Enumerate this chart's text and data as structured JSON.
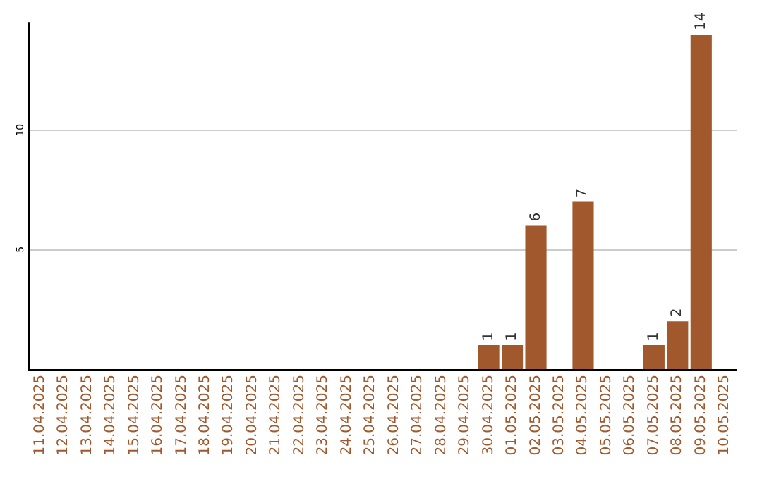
{
  "chart_data": {
    "type": "bar",
    "categories": [
      "11.04.2025",
      "12.04.2025",
      "13.04.2025",
      "14.04.2025",
      "15.04.2025",
      "16.04.2025",
      "17.04.2025",
      "18.04.2025",
      "19.04.2025",
      "20.04.2025",
      "21.04.2025",
      "22.04.2025",
      "23.04.2025",
      "24.04.2025",
      "25.04.2025",
      "26.04.2025",
      "27.04.2025",
      "28.04.2025",
      "29.04.2025",
      "30.04.2025",
      "01.05.2025",
      "02.05.2025",
      "03.05.2025",
      "04.05.2025",
      "05.05.2025",
      "06.05.2025",
      "07.05.2025",
      "08.05.2025",
      "09.05.2025",
      "10.05.2025"
    ],
    "values": [
      0,
      0,
      0,
      0,
      0,
      0,
      0,
      0,
      0,
      0,
      0,
      0,
      0,
      0,
      0,
      0,
      0,
      0,
      0,
      1,
      1,
      6,
      0,
      7,
      0,
      0,
      1,
      2,
      14,
      0
    ],
    "value_labels": [
      null,
      null,
      null,
      null,
      null,
      null,
      null,
      null,
      null,
      null,
      null,
      null,
      null,
      null,
      null,
      null,
      null,
      null,
      null,
      "1",
      "1",
      "6",
      null,
      "7",
      null,
      null,
      "1",
      "2",
      "14",
      null
    ],
    "color": "#a0582c",
    "ylim": [
      0,
      14.5
    ],
    "yticks": [
      5,
      10
    ],
    "grid": "y"
  }
}
